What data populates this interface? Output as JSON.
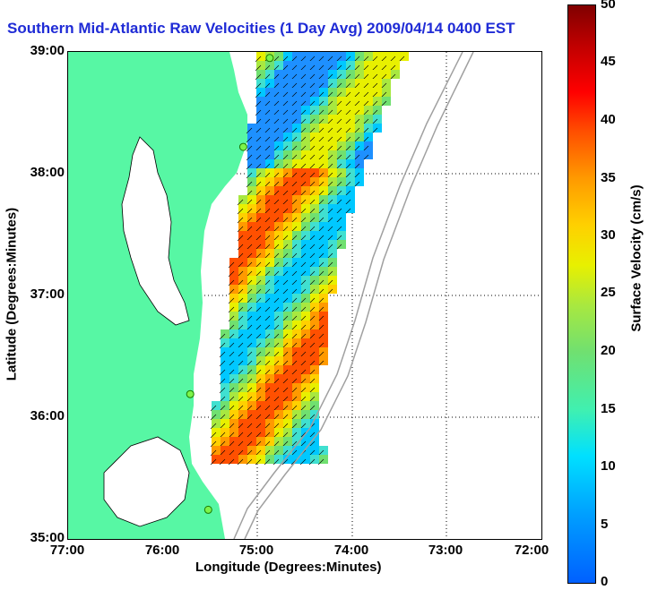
{
  "title": "Southern Mid-Atlantic Raw Velocities (1 Day Avg) 2009/04/14 0400 EST",
  "axes": {
    "xlabel": "Longitude (Degrees:Minutes)",
    "ylabel": "Latitude (Degrees:Minutes)",
    "xticks": [
      "77:00",
      "76:00",
      "75:00",
      "74:00",
      "73:00",
      "72:00"
    ],
    "yticks": [
      "39:00",
      "38:00",
      "37:00",
      "36:00",
      "35:00"
    ]
  },
  "colorbar": {
    "label": "Surface Velocity (cm/s)",
    "ticks": [
      "50",
      "45",
      "40",
      "35",
      "30",
      "25",
      "20",
      "15",
      "10",
      "5",
      "0"
    ],
    "range": [
      0,
      50
    ]
  },
  "colors": {
    "land": "#57f7a4",
    "title": "#1f2bd6",
    "station": "#7cf44a",
    "bathymetry": "#a0a0a0"
  },
  "stations": [
    {
      "lon": -74.87,
      "lat": 38.95
    },
    {
      "lon": -75.15,
      "lat": 38.22
    },
    {
      "lon": -75.71,
      "lat": 36.19
    },
    {
      "lon": -75.52,
      "lat": 35.24
    }
  ]
}
